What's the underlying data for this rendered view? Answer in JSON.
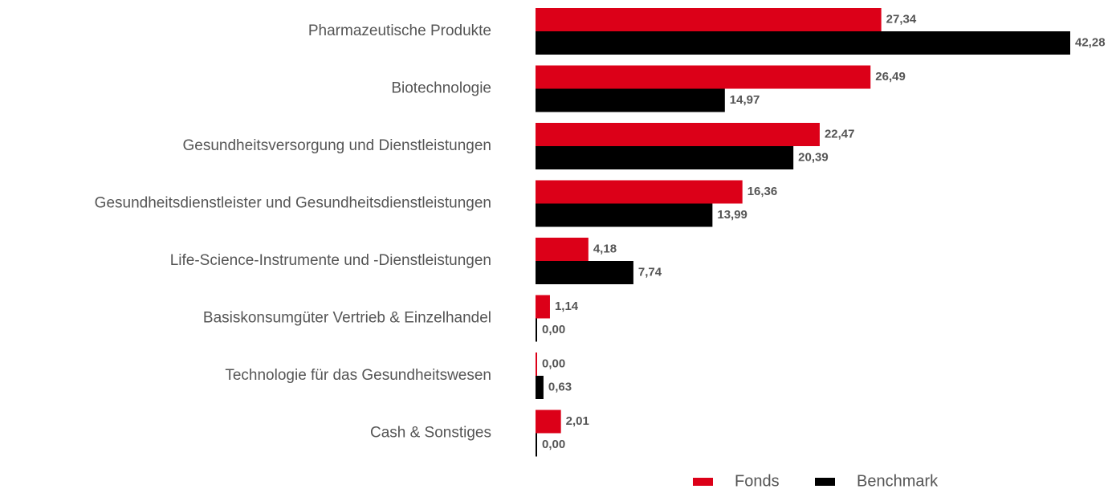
{
  "chart_data": {
    "type": "barh",
    "categories": [
      "Pharmazeutische Produkte",
      "Biotechnologie",
      "Gesundheitsversorgung und Dienstleistungen",
      "Gesundheitsdienstleister und Gesundheitsdienstleistungen",
      "Life-Science-Instrumente und -Dienstleistungen",
      "Basiskonsumgüter Vertrieb & Einzelhandel",
      "Technologie für das Gesundheitswesen",
      "Cash & Sonstiges"
    ],
    "series": [
      {
        "name": "Fonds",
        "color": "#dc0018",
        "values": [
          27.34,
          26.49,
          22.47,
          16.36,
          4.18,
          1.14,
          0,
          2.01
        ],
        "value_labels": [
          "27,34",
          "26,49",
          "22,47",
          "16,36",
          "4,18",
          "1,14",
          "0,00",
          "2,01"
        ]
      },
      {
        "name": "Benchmark",
        "color": "#000000",
        "values": [
          42.28,
          14.97,
          20.39,
          13.99,
          7.74,
          0,
          0.63,
          0
        ],
        "value_labels": [
          "42,28",
          "14,97",
          "20,39",
          "13,99",
          "7,74",
          "0,00",
          "0,63",
          "0,00"
        ]
      }
    ],
    "legend": "bottom-right"
  }
}
